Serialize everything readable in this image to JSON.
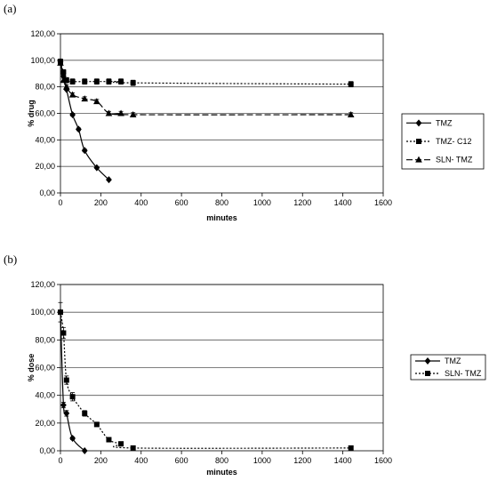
{
  "chart_data": [
    {
      "panel_label": "(a)",
      "type": "line",
      "xlabel": "minutes",
      "ylabel": "% drug",
      "xlim": [
        0,
        1600
      ],
      "ylim": [
        0,
        120
      ],
      "x_ticks": [
        "0",
        "200",
        "400",
        "600",
        "800",
        "1000",
        "1200",
        "1400",
        "1600"
      ],
      "y_ticks": [
        "0,00",
        "20,00",
        "40,00",
        "60,00",
        "80,00",
        "100,00",
        "120,00"
      ],
      "grid": "horizontal",
      "legend_position": "right",
      "series": [
        {
          "name": "TMZ",
          "marker": "diamond",
          "line": "solid",
          "x": [
            0,
            15,
            30,
            60,
            90,
            120,
            180,
            240
          ],
          "y": [
            99,
            88,
            78,
            59,
            48,
            32,
            19,
            10
          ],
          "err": [
            0,
            0,
            0,
            1,
            1,
            1,
            0.5,
            0.5
          ]
        },
        {
          "name": "TMZ- C12",
          "marker": "square",
          "line": "dotted",
          "x": [
            0,
            15,
            30,
            60,
            120,
            180,
            240,
            300,
            360,
            1440
          ],
          "y": [
            99,
            91,
            85,
            84,
            84,
            84,
            84,
            84,
            83,
            82
          ],
          "err": [
            2,
            2,
            2,
            2,
            2,
            2,
            2,
            2,
            2,
            2
          ]
        },
        {
          "name": "SLN- TMZ",
          "marker": "triangle",
          "line": "dashed",
          "x": [
            0,
            15,
            30,
            60,
            120,
            180,
            240,
            300,
            360,
            1440
          ],
          "y": [
            98,
            85,
            80,
            74,
            71,
            69,
            60,
            60,
            59,
            59
          ],
          "err": [
            1.5,
            1.5,
            1.5,
            1.5,
            1.5,
            1.5,
            1.5,
            1.5,
            1.5,
            1.5
          ]
        }
      ]
    },
    {
      "panel_label": "(b)",
      "type": "line",
      "xlabel": "minutes",
      "ylabel": "% dose",
      "xlim": [
        0,
        1600
      ],
      "ylim": [
        0,
        120
      ],
      "x_ticks": [
        "0",
        "200",
        "400",
        "600",
        "800",
        "1000",
        "1200",
        "1400",
        "1600"
      ],
      "y_ticks": [
        "0,00",
        "20,00",
        "40,00",
        "60,00",
        "80,00",
        "100,00",
        "120,00"
      ],
      "grid": "horizontal",
      "legend_position": "right",
      "series": [
        {
          "name": "TMZ",
          "marker": "diamond",
          "line": "solid",
          "x": [
            0,
            15,
            30,
            60,
            120
          ],
          "y": [
            100,
            33,
            27,
            9,
            0
          ],
          "err": [
            0,
            2,
            2,
            1,
            0
          ]
        },
        {
          "name": "SLN- TMZ",
          "marker": "square",
          "line": "dotted",
          "x": [
            0,
            15,
            30,
            60,
            120,
            180,
            240,
            300,
            360,
            1440
          ],
          "y": [
            100,
            85,
            51,
            39,
            27,
            19,
            8,
            5,
            2,
            2
          ],
          "err": [
            7,
            4,
            3,
            3,
            2,
            1.5,
            1,
            0.5,
            0.5,
            0.5
          ]
        }
      ]
    }
  ]
}
